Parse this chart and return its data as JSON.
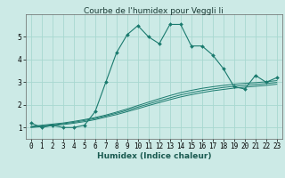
{
  "title": "Courbe de l'humidex pour Veggli Ii",
  "xlabel": "Humidex (Indice chaleur)",
  "bg_color": "#cceae6",
  "grid_color": "#a8d8d0",
  "line_color": "#1a7a6e",
  "x_values": [
    0,
    1,
    2,
    3,
    4,
    5,
    6,
    7,
    8,
    9,
    10,
    11,
    12,
    13,
    14,
    15,
    16,
    17,
    18,
    19,
    20,
    21,
    22,
    23
  ],
  "main_line": [
    1.2,
    1.0,
    1.1,
    1.0,
    1.0,
    1.1,
    1.7,
    3.0,
    4.3,
    5.1,
    5.5,
    5.0,
    4.7,
    5.55,
    5.55,
    4.6,
    4.6,
    4.2,
    3.6,
    2.8,
    2.7,
    3.3,
    3.0,
    3.2
  ],
  "linear1": [
    1.05,
    1.1,
    1.15,
    1.2,
    1.27,
    1.35,
    1.44,
    1.55,
    1.68,
    1.82,
    1.97,
    2.12,
    2.27,
    2.41,
    2.54,
    2.64,
    2.73,
    2.8,
    2.86,
    2.91,
    2.95,
    2.98,
    3.02,
    3.07
  ],
  "linear2": [
    1.02,
    1.07,
    1.12,
    1.17,
    1.23,
    1.31,
    1.4,
    1.51,
    1.63,
    1.76,
    1.9,
    2.04,
    2.18,
    2.31,
    2.44,
    2.54,
    2.63,
    2.7,
    2.77,
    2.82,
    2.86,
    2.9,
    2.94,
    2.99
  ],
  "linear3": [
    1.0,
    1.04,
    1.08,
    1.13,
    1.19,
    1.26,
    1.35,
    1.46,
    1.57,
    1.7,
    1.83,
    1.97,
    2.1,
    2.23,
    2.35,
    2.45,
    2.54,
    2.62,
    2.68,
    2.74,
    2.78,
    2.82,
    2.86,
    2.91
  ],
  "ylim": [
    0.5,
    6.0
  ],
  "xlim": [
    -0.5,
    23.5
  ],
  "yticks": [
    1,
    2,
    3,
    4,
    5
  ],
  "xticks": [
    0,
    1,
    2,
    3,
    4,
    5,
    6,
    7,
    8,
    9,
    10,
    11,
    12,
    13,
    14,
    15,
    16,
    17,
    18,
    19,
    20,
    21,
    22,
    23
  ],
  "title_fontsize": 6.5,
  "label_fontsize": 6.5,
  "tick_fontsize": 5.5
}
